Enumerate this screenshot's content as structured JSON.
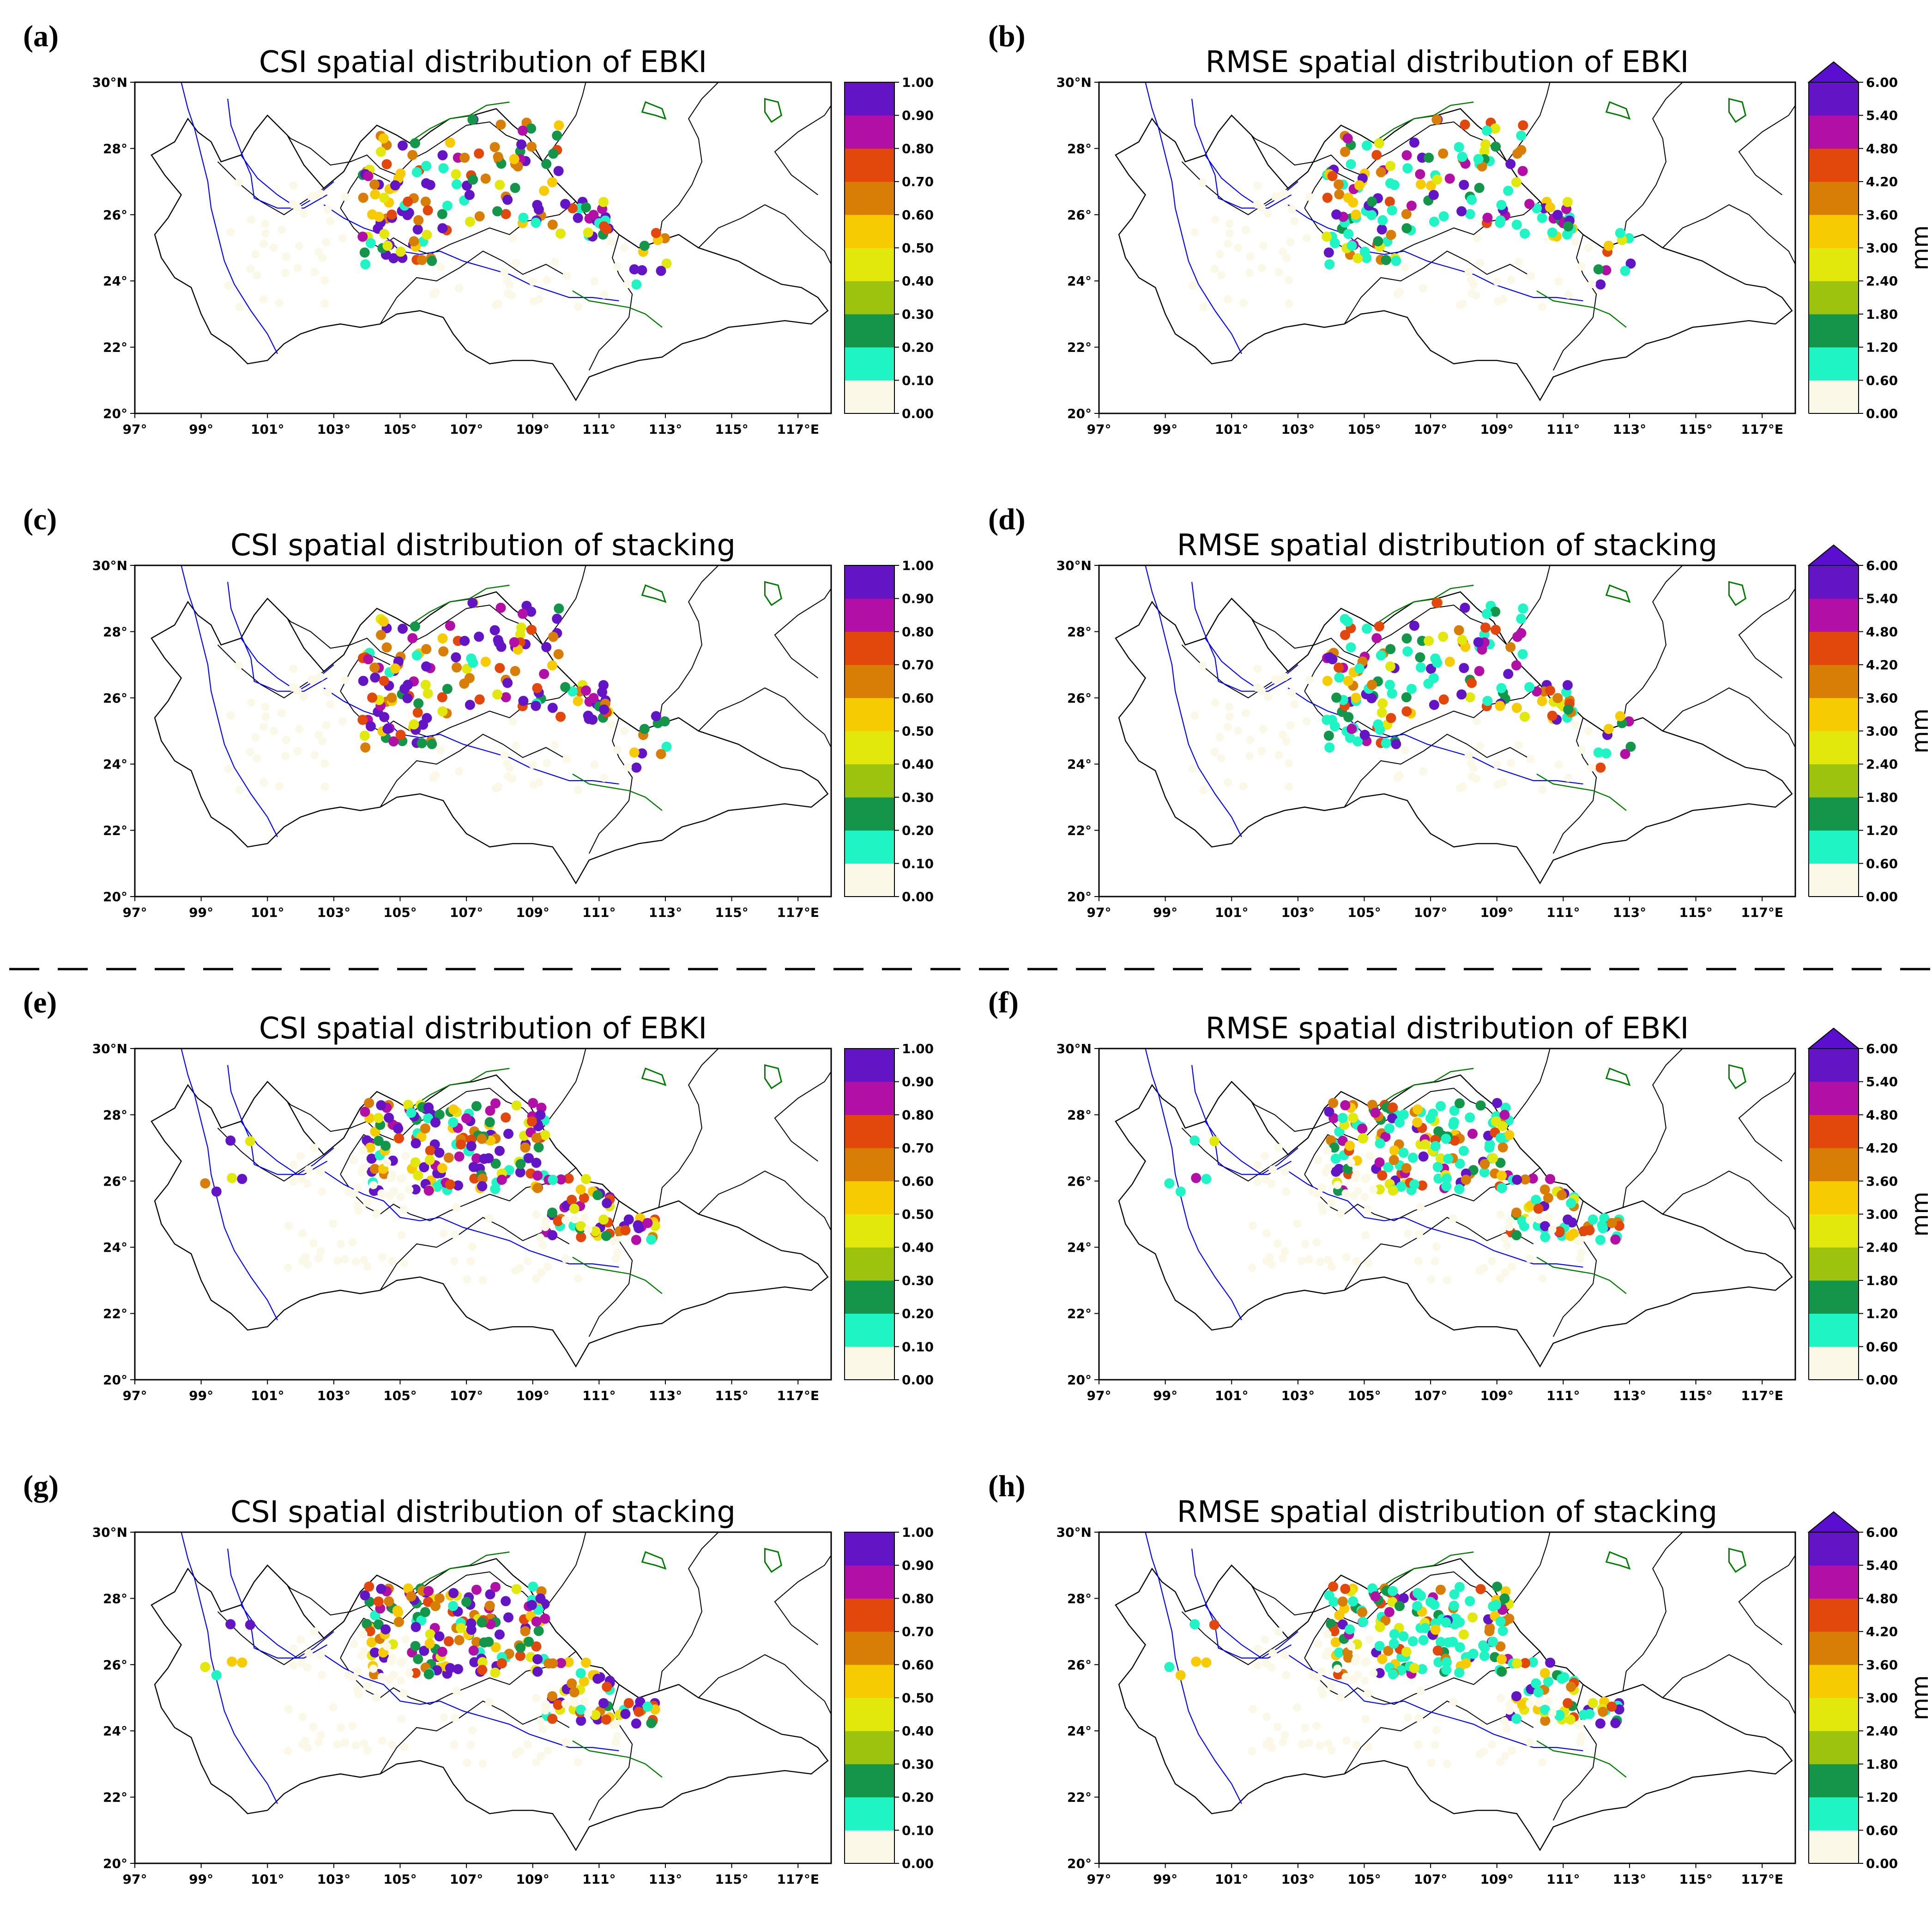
{
  "chart_data": [
    {
      "panel": "(a)",
      "type": "scatter",
      "title": "CSI spatial distribution of EBKI",
      "metric": "CSI",
      "case": 1,
      "seed": 11,
      "seedShift": 0
    },
    {
      "panel": "(b)",
      "type": "scatter",
      "title": "RMSE spatial distribution of EBKI",
      "metric": "RMSE",
      "case": 1,
      "seed": 11,
      "seedShift": 3
    },
    {
      "panel": "(c)",
      "type": "scatter",
      "title": "CSI spatial distribution of stacking",
      "metric": "CSI",
      "case": 1,
      "seed": 11,
      "seedShift": 7
    },
    {
      "panel": "(d)",
      "type": "scatter",
      "title": "RMSE spatial distribution of stacking",
      "metric": "RMSE",
      "case": 1,
      "seed": 11,
      "seedShift": 9
    },
    {
      "panel": "(e)",
      "type": "scatter",
      "title": "CSI spatial distribution of EBKI",
      "metric": "CSI",
      "case": 2,
      "seed": 29,
      "seedShift": 0
    },
    {
      "panel": "(f)",
      "type": "scatter",
      "title": "RMSE spatial distribution of EBKI",
      "metric": "RMSE",
      "case": 2,
      "seed": 29,
      "seedShift": 3
    },
    {
      "panel": "(g)",
      "type": "scatter",
      "title": "CSI spatial distribution of stacking",
      "metric": "CSI",
      "case": 2,
      "seed": 29,
      "seedShift": 7
    },
    {
      "panel": "(h)",
      "type": "scatter",
      "title": "RMSE spatial distribution of stacking",
      "metric": "RMSE",
      "case": 2,
      "seed": 29,
      "seedShift": 9
    }
  ],
  "axes": {
    "x_ticks": [
      "97°",
      "99°",
      "101°",
      "103°",
      "105°",
      "107°",
      "109°",
      "111°",
      "113°",
      "115°",
      "117°E"
    ],
    "y_ticks": [
      "20°",
      "22°",
      "24°",
      "26°",
      "28°",
      "30°N"
    ],
    "xlim": [
      97,
      118
    ],
    "ylim": [
      20,
      30
    ]
  },
  "colorbars": {
    "CSI": {
      "labels": [
        "0.00",
        "0.10",
        "0.20",
        "0.30",
        "0.40",
        "0.50",
        "0.60",
        "0.70",
        "0.80",
        "0.90",
        "1.00"
      ],
      "extend_max": false,
      "unit": ""
    },
    "RMSE": {
      "labels": [
        "0.00",
        "0.60",
        "1.20",
        "1.80",
        "2.40",
        "3.00",
        "3.60",
        "4.20",
        "4.80",
        "5.40",
        "6.00"
      ],
      "extend_max": true,
      "unit": "mm"
    },
    "colors": [
      "#fbf8e8",
      "#1ff5c4",
      "#14964a",
      "#9cc40e",
      "#e2e70c",
      "#f7cb02",
      "#d87e06",
      "#e2470c",
      "#b20fa6",
      "#6314c4",
      "#5a0fd0"
    ]
  },
  "map_colors": {
    "province_border": "#000000",
    "river": "#0000ff",
    "basin_line": "#007a00"
  }
}
